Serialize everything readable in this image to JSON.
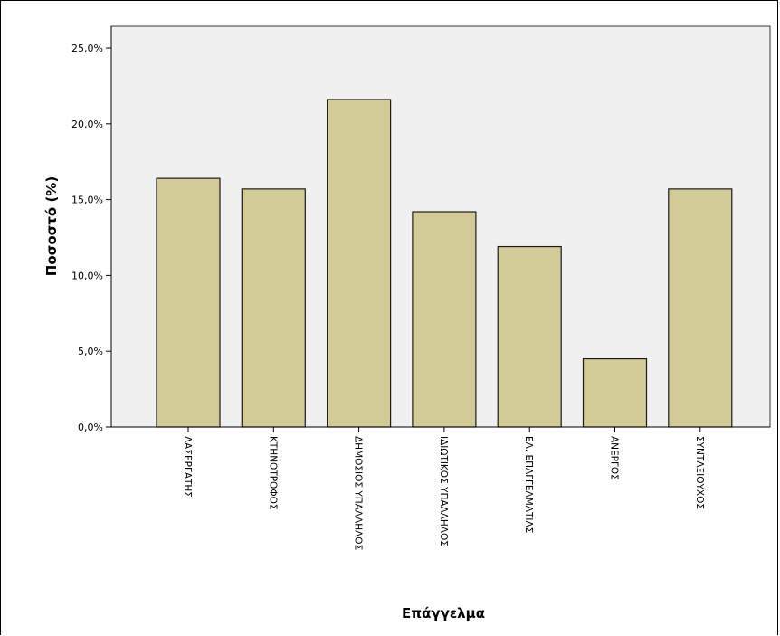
{
  "chart_data": {
    "type": "bar",
    "categories": [
      "ΔΑΣΕΡΓΑΤΗΣ",
      "ΚΤΗΝΟΤΡΟΦΟΣ",
      "ΔΗΜΟΣΙΟΣ ΥΠΑΛΛΗΛΟΣ",
      "ΙΔΙΩΤΙΚΟΣ ΥΠΑΛΛΗΛΟΣ",
      "ΕΛ. ΕΠΑΓΓΕΛΜΑΤΙΑΣ",
      "ΑΝΕΡΓΟΣ",
      "ΣΥΝΤΑΞΙΟΥΧΟΣ"
    ],
    "values": [
      16.4,
      15.7,
      21.6,
      14.2,
      11.9,
      4.5,
      15.7
    ],
    "xlabel": "Επάγγελμα",
    "ylabel": "Ποσοστό (%)",
    "ylim": [
      0,
      25
    ],
    "yticks": [
      0,
      5,
      10,
      15,
      20,
      25
    ],
    "ytick_labels": [
      "0,0%",
      "5,0%",
      "10,0%",
      "15,0%",
      "20,0%",
      "25,0%"
    ],
    "grid": false,
    "legend": "none",
    "colors": {
      "bar_fill": "#d3cb97",
      "bar_stroke": "#1a1a1a",
      "plot_background": "#f0f0f0"
    }
  }
}
